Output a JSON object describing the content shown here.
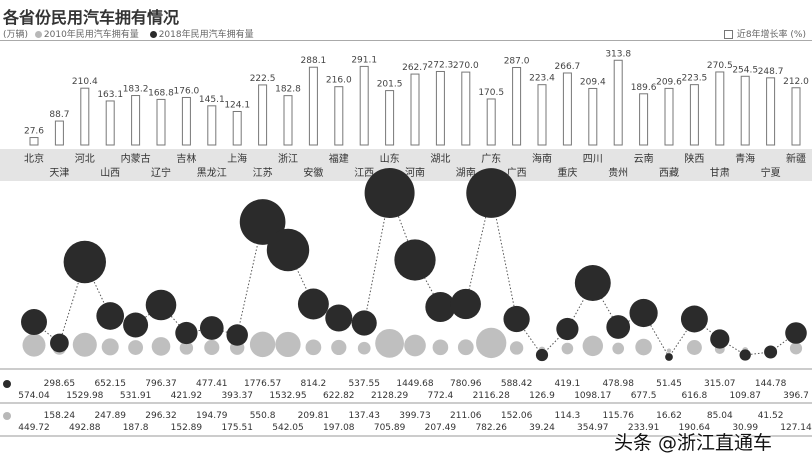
{
  "title": "各省份民用汽车拥有情况",
  "legend": {
    "unit": "(万辆)",
    "s2010": "2010年民用汽车拥有量",
    "s2018": "2018年民用汽车拥有量",
    "growth": "近8年增长率 (%)"
  },
  "colors": {
    "s2010": "#b8b8b8",
    "s2018": "#2b2b2b",
    "bar": "#777777"
  },
  "watermark": "头条 @浙江直通车",
  "chart_data": {
    "type": "bar+bubble",
    "categories": [
      "北京",
      "天津",
      "河北",
      "山西",
      "内蒙古",
      "辽宁",
      "吉林",
      "黑龙江",
      "上海",
      "江苏",
      "浙江",
      "安徽",
      "福建",
      "江西",
      "山东",
      "河南",
      "湖北",
      "湖南",
      "广东",
      "广西",
      "海南",
      "重庆",
      "四川",
      "贵州",
      "云南",
      "西藏",
      "陕西",
      "甘肃",
      "青海",
      "宁夏",
      "新疆"
    ],
    "series": [
      {
        "name": "近8年增长率 (%)",
        "type": "bar",
        "values": [
          27.6,
          88.7,
          210.4,
          163.1,
          183.2,
          168.8,
          176.0,
          145.1,
          124.1,
          222.5,
          182.8,
          288.1,
          216.0,
          291.1,
          201.5,
          262.7,
          272.3,
          270.0,
          170.5,
          287.0,
          223.4,
          266.7,
          209.4,
          313.8,
          189.6,
          209.6,
          223.5,
          270.5,
          254.5,
          248.7,
          212.0
        ]
      },
      {
        "name": "2018年民用汽车拥有量",
        "type": "bubble",
        "values": [
          "574.04",
          "298.65",
          "1529.98",
          "652.15",
          "531.91",
          "796.37",
          "421.92",
          "477.41",
          "393.37",
          "1776.57",
          "1532.95",
          "814.2",
          "622.82",
          "537.55",
          "2128.29",
          "1449.68",
          "772.4",
          "780.96",
          "2116.28",
          "588.42",
          "126.9",
          "419.1",
          "1098.17",
          "478.98",
          "677.5",
          "51.45",
          "616.8",
          "315.07",
          "109.87",
          "144.78",
          "396.7"
        ]
      },
      {
        "name": "2010年民用汽车拥有量",
        "type": "bubble",
        "values": [
          "449.72",
          "158.24",
          "492.88",
          "247.89",
          "187.8",
          "296.32",
          "152.89",
          "194.79",
          "175.51",
          "550.8",
          "542.05",
          "209.81",
          "197.08",
          "137.43",
          "705.89",
          "399.73",
          "207.49",
          "211.06",
          "782.26",
          "152.06",
          "39.24",
          "114.3",
          "354.97",
          "115.76",
          "233.91",
          "16.62",
          "190.64",
          "85.04",
          "30.99",
          "41.52",
          "127.14"
        ]
      }
    ],
    "growth_labels": [
      "27.6",
      "88.7",
      "210.4",
      "163.1",
      "183.2",
      "168.8",
      "176.0",
      "145.1",
      "124.1",
      "222.5",
      "182.8",
      "288.1",
      "216.0",
      "291.1",
      "201.5",
      "262.7",
      "272.3",
      "270.0",
      "170.5",
      "287.0",
      "223.4",
      "266.7",
      "209.4",
      "313.8",
      "189.6",
      "209.6",
      "223.5",
      "270.5",
      "254.5",
      "248.7",
      "212.0"
    ]
  }
}
